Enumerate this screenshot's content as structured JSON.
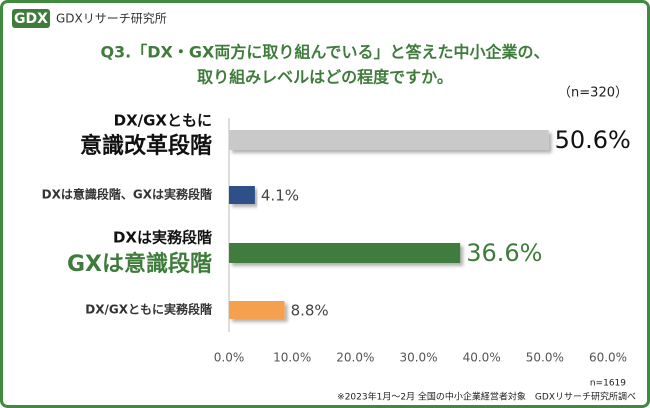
{
  "header": {
    "logo": "GDX",
    "organization": "GDXリサーチ研究所"
  },
  "chart_data": {
    "type": "bar",
    "orientation": "horizontal",
    "title": [
      "Q3.「DX・GX両方に取り組んでいる」と答えた中小企業の、",
      "取り組みレベルはどの程度ですか。"
    ],
    "sample_note": "（n=320）",
    "categories": [
      [
        "DX/GXともに",
        "意識改革段階"
      ],
      [
        "DXは意識段階、GXは実務段階"
      ],
      [
        "DXは実務段階",
        "GXは意識段階"
      ],
      [
        "DX/GXともに実務段階"
      ]
    ],
    "values": [
      50.6,
      4.1,
      36.6,
      8.8
    ],
    "value_labels": [
      "50.6%",
      "4.1%",
      "36.6%",
      "8.8%"
    ],
    "colors": [
      "#c9c9c9",
      "#2f4f88",
      "#3f7c3c",
      "#f4a04f"
    ],
    "xlim": [
      0,
      60
    ],
    "xticks": [
      {
        "value": 0,
        "label": "0.0%"
      },
      {
        "value": 10,
        "label": "10.0%"
      },
      {
        "value": 20,
        "label": "20.0%"
      },
      {
        "value": 30,
        "label": "30.0%"
      },
      {
        "value": 40,
        "label": "40.0%"
      },
      {
        "value": 50,
        "label": "50.0%"
      },
      {
        "value": 60,
        "label": "60.0%"
      }
    ]
  },
  "footer": {
    "n": "n=1619",
    "source": "※2023年1月～2月 全国の中小企業経営者対象　GDXリサーチ研究所調べ"
  }
}
